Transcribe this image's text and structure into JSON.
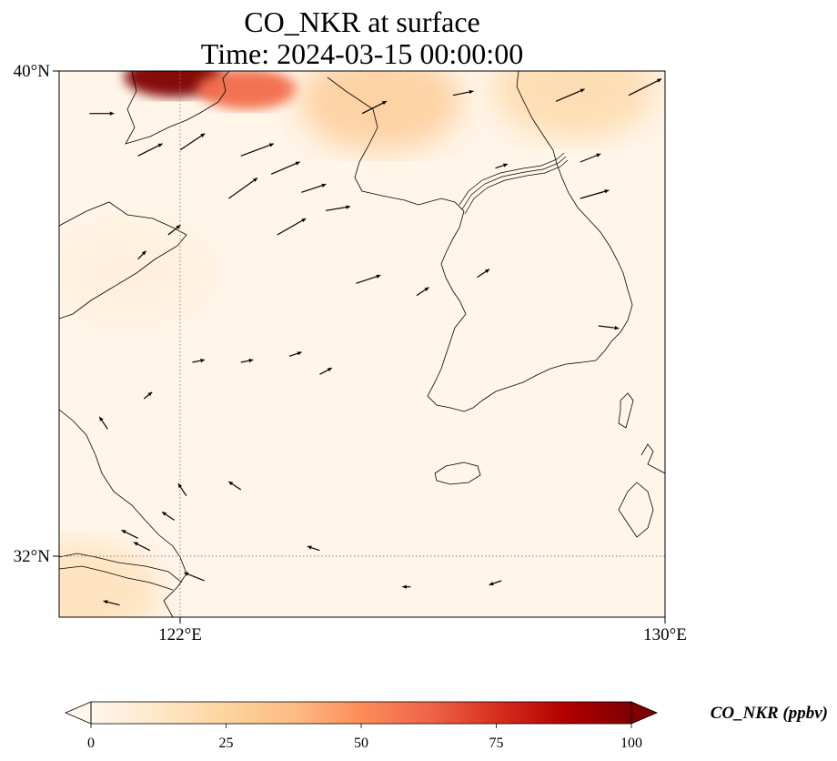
{
  "figure": {
    "title_line1": "CO_NKR at surface",
    "title_line2": "Time: 2024-03-15 00:00:00"
  },
  "map": {
    "lon_range": [
      120,
      130
    ],
    "lat_range": [
      31,
      40
    ],
    "lon_ticks": [
      {
        "value": 122,
        "label": "122°E"
      },
      {
        "value": 130,
        "label": "130°E"
      }
    ],
    "lat_ticks": [
      {
        "value": 40,
        "label": "40°N"
      },
      {
        "value": 32,
        "label": "32°N"
      }
    ],
    "gridlines": "dotted at 122°E and 32°N"
  },
  "colorbar": {
    "label": "CO_NKR (ppbv)",
    "ticks": [
      "0",
      "25",
      "50",
      "75",
      "100"
    ],
    "range": [
      0,
      100
    ],
    "colormap": "OrRd",
    "extend": "both",
    "stops": [
      "#fff7ec",
      "#fee8c8",
      "#fdd49e",
      "#fdbb84",
      "#fc8d59",
      "#ef6548",
      "#d7301f",
      "#b30000",
      "#7f0000"
    ]
  },
  "chart_data": {
    "type": "heatmap",
    "variable": "CO_NKR",
    "level": "surface",
    "time": "2024-03-15 00:00:00",
    "units": "ppbv",
    "hotspots": [
      {
        "lon": 121.9,
        "lat": 39.9,
        "value": 100
      },
      {
        "lon": 123.1,
        "lat": 39.7,
        "value": 60
      },
      {
        "lon": 125.3,
        "lat": 39.5,
        "value": 30
      },
      {
        "lon": 128.5,
        "lat": 39.7,
        "value": 22
      },
      {
        "lon": 120.3,
        "lat": 31.4,
        "value": 18
      },
      {
        "lon": 121.2,
        "lat": 36.7,
        "value": 6
      }
    ],
    "wind_vectors": [
      {
        "lon": 120.5,
        "lat": 39.3,
        "u": 3,
        "v": 0
      },
      {
        "lon": 121.3,
        "lat": 38.6,
        "u": 3,
        "v": 1.5
      },
      {
        "lon": 122.0,
        "lat": 38.7,
        "u": 3,
        "v": 2
      },
      {
        "lon": 123.0,
        "lat": 38.6,
        "u": 4,
        "v": 1.5
      },
      {
        "lon": 123.5,
        "lat": 38.3,
        "u": 3.5,
        "v": 1.5
      },
      {
        "lon": 124.0,
        "lat": 38.0,
        "u": 3,
        "v": 1
      },
      {
        "lon": 122.8,
        "lat": 37.9,
        "u": 3.5,
        "v": 2.5
      },
      {
        "lon": 125.0,
        "lat": 39.3,
        "u": 3,
        "v": 1.5
      },
      {
        "lon": 126.5,
        "lat": 39.6,
        "u": 2.5,
        "v": 0.5
      },
      {
        "lon": 128.2,
        "lat": 39.5,
        "u": 3.5,
        "v": 1.5
      },
      {
        "lon": 129.4,
        "lat": 39.6,
        "u": 4,
        "v": 2
      },
      {
        "lon": 128.6,
        "lat": 38.5,
        "u": 2.5,
        "v": 1
      },
      {
        "lon": 128.6,
        "lat": 37.9,
        "u": 3.5,
        "v": 1
      },
      {
        "lon": 127.2,
        "lat": 38.4,
        "u": 1.5,
        "v": 0.5
      },
      {
        "lon": 124.4,
        "lat": 37.7,
        "u": 3,
        "v": 0.5
      },
      {
        "lon": 123.6,
        "lat": 37.3,
        "u": 3.5,
        "v": 2
      },
      {
        "lon": 121.8,
        "lat": 37.3,
        "u": 1.5,
        "v": 1.2
      },
      {
        "lon": 121.3,
        "lat": 36.9,
        "u": 1,
        "v": 1
      },
      {
        "lon": 124.9,
        "lat": 36.5,
        "u": 3,
        "v": 1
      },
      {
        "lon": 125.9,
        "lat": 36.3,
        "u": 1.5,
        "v": 1
      },
      {
        "lon": 126.9,
        "lat": 36.6,
        "u": 1.5,
        "v": 1
      },
      {
        "lon": 128.9,
        "lat": 35.8,
        "u": 2.5,
        "v": -0.3
      },
      {
        "lon": 123.8,
        "lat": 35.3,
        "u": 1.5,
        "v": 0.5
      },
      {
        "lon": 123.0,
        "lat": 35.2,
        "u": 1.5,
        "v": 0.3
      },
      {
        "lon": 122.2,
        "lat": 35.2,
        "u": 1.5,
        "v": 0.3
      },
      {
        "lon": 124.3,
        "lat": 35.0,
        "u": 1.5,
        "v": 0.8
      },
      {
        "lon": 121.4,
        "lat": 34.6,
        "u": 1,
        "v": 0.8
      },
      {
        "lon": 120.8,
        "lat": 34.1,
        "u": -1,
        "v": 1.5
      },
      {
        "lon": 123.0,
        "lat": 33.1,
        "u": -1.5,
        "v": 1
      },
      {
        "lon": 122.1,
        "lat": 33.0,
        "u": -1,
        "v": 1.5
      },
      {
        "lon": 121.9,
        "lat": 32.6,
        "u": -1.5,
        "v": 1
      },
      {
        "lon": 121.3,
        "lat": 32.3,
        "u": -2,
        "v": 1
      },
      {
        "lon": 121.5,
        "lat": 32.1,
        "u": -2,
        "v": 1
      },
      {
        "lon": 124.3,
        "lat": 32.1,
        "u": -1.5,
        "v": 0.5
      },
      {
        "lon": 122.4,
        "lat": 31.6,
        "u": -2.5,
        "v": 1
      },
      {
        "lon": 121.0,
        "lat": 31.2,
        "u": -2,
        "v": 0.5
      },
      {
        "lon": 125.8,
        "lat": 31.5,
        "u": -1,
        "v": 0
      },
      {
        "lon": 127.3,
        "lat": 31.6,
        "u": -1.5,
        "v": -0.5
      }
    ]
  }
}
